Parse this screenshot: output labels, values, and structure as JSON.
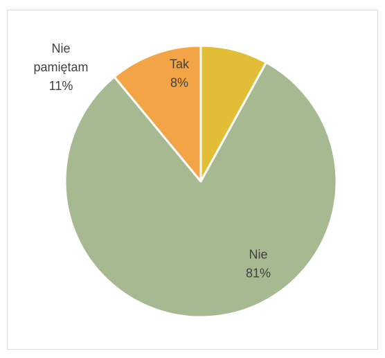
{
  "chart_data": {
    "type": "pie",
    "title": "",
    "slices": [
      {
        "label": "Tak",
        "value": 8,
        "value_label": "8%",
        "color": "#E1BE35",
        "label_lines": [
          "Tak"
        ]
      },
      {
        "label": "Nie",
        "value": 81,
        "value_label": "81%",
        "color": "#A7B991",
        "label_lines": [
          "Nie"
        ]
      },
      {
        "label": "Nie pamiętam",
        "value": 11,
        "value_label": "11%",
        "color": "#F2A446",
        "label_lines": [
          "Nie",
          "pamiętam"
        ]
      }
    ],
    "start_angle_deg": 0,
    "direction": "clockwise",
    "legend": "none",
    "label_color": "#404040",
    "border_color": "#D9D9D9"
  }
}
